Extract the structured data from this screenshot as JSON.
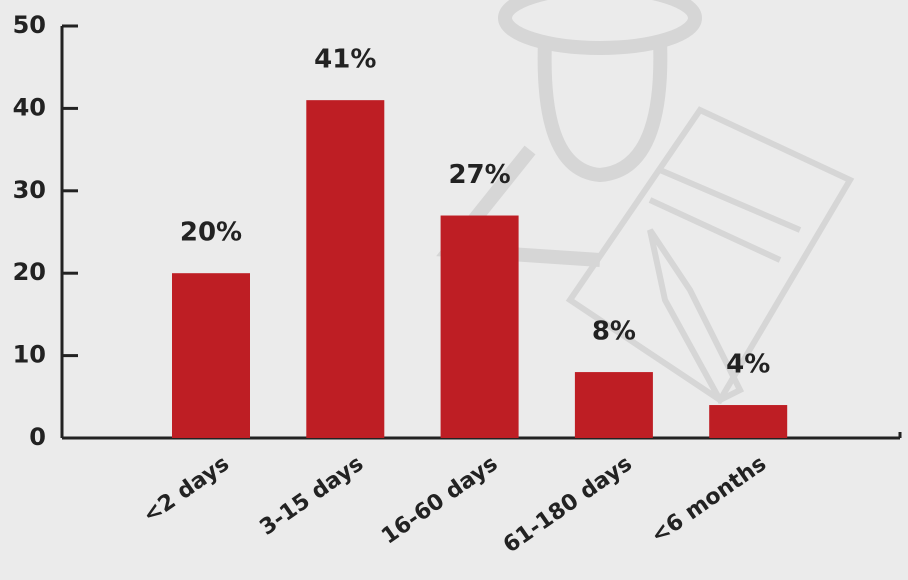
{
  "chart_data": {
    "type": "bar",
    "categories": [
      "<2 days",
      "3-15 days",
      "16-60 days",
      "61-180 days",
      "<6 months"
    ],
    "values": [
      20,
      41,
      27,
      8,
      4
    ],
    "value_labels": [
      "20%",
      "41%",
      "27%",
      "8%",
      "4%"
    ],
    "color": "#be1e24",
    "ylim": [
      0,
      50
    ],
    "yticks": [
      0,
      10,
      20,
      30,
      40,
      50
    ]
  }
}
